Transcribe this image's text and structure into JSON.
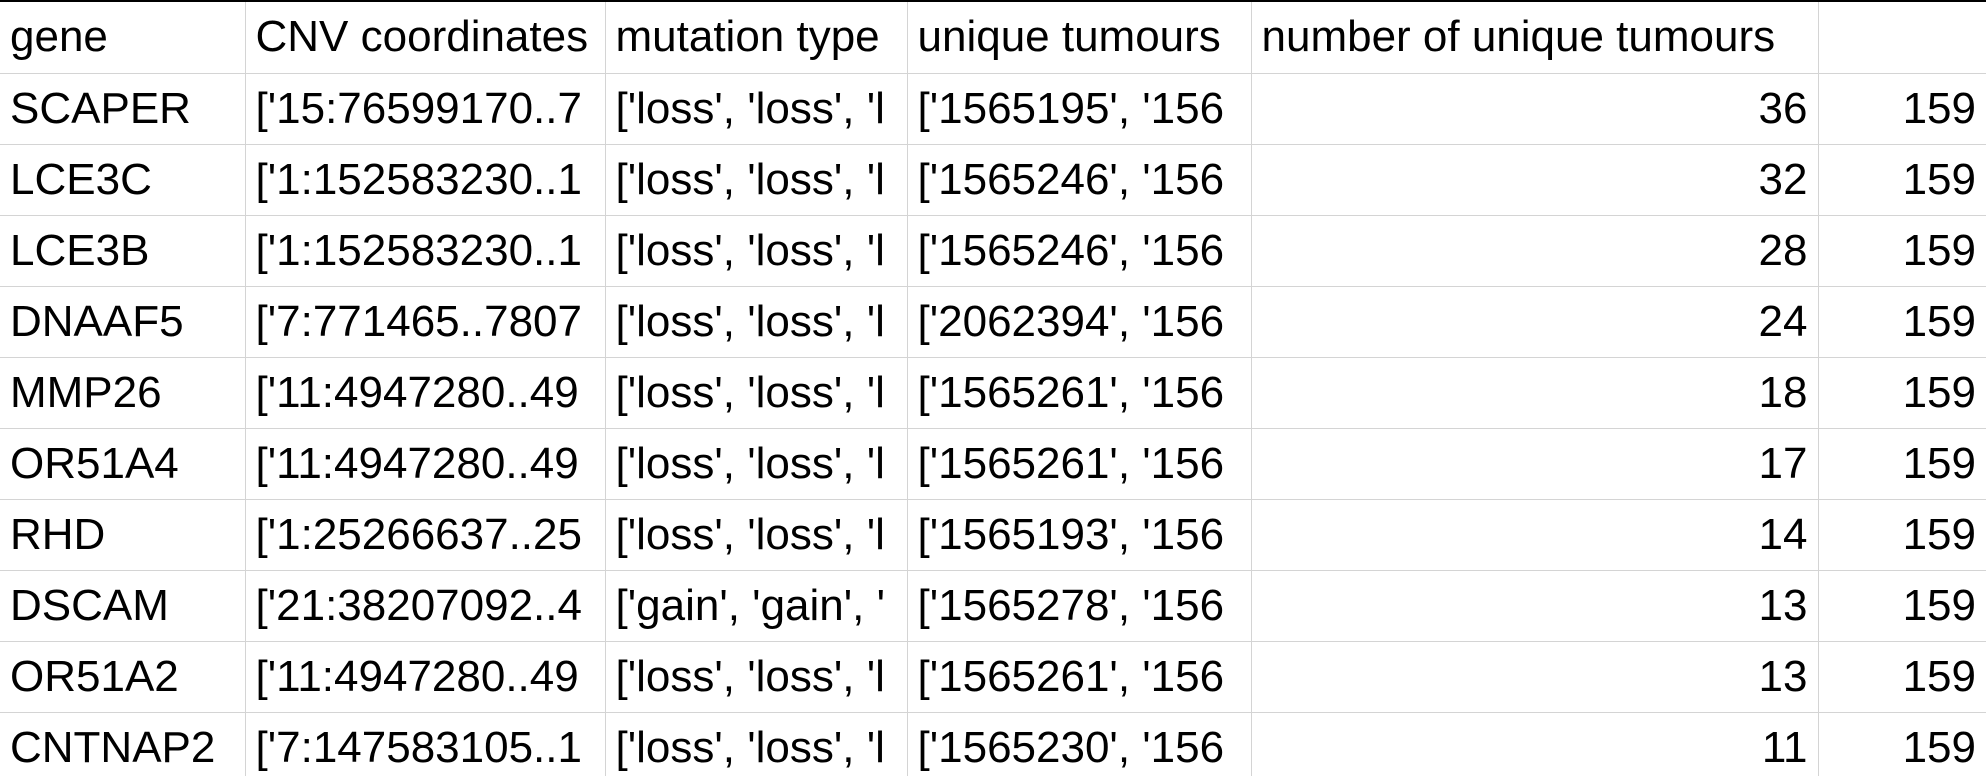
{
  "columns": [
    "gene",
    "CNV coordinates",
    "mutation type",
    "unique tumours",
    "number of unique tumours",
    ""
  ],
  "rows": [
    {
      "gene": "SCAPER",
      "cnv_coordinates": "['15:76599170..7",
      "mutation_type": "['loss', 'loss', 'l",
      "unique_tumours": "['1565195', '156",
      "number_of_unique_tumours": "36",
      "extra": "159"
    },
    {
      "gene": "LCE3C",
      "cnv_coordinates": "['1:152583230..1",
      "mutation_type": "['loss', 'loss', 'l",
      "unique_tumours": "['1565246', '156",
      "number_of_unique_tumours": "32",
      "extra": "159"
    },
    {
      "gene": "LCE3B",
      "cnv_coordinates": "['1:152583230..1",
      "mutation_type": "['loss', 'loss', 'l",
      "unique_tumours": "['1565246', '156",
      "number_of_unique_tumours": "28",
      "extra": "159"
    },
    {
      "gene": "DNAAF5",
      "cnv_coordinates": "['7:771465..7807",
      "mutation_type": "['loss', 'loss', 'l",
      "unique_tumours": "['2062394', '156",
      "number_of_unique_tumours": "24",
      "extra": "159"
    },
    {
      "gene": "MMP26",
      "cnv_coordinates": "['11:4947280..49",
      "mutation_type": "['loss', 'loss', 'l",
      "unique_tumours": "['1565261', '156",
      "number_of_unique_tumours": "18",
      "extra": "159"
    },
    {
      "gene": "OR51A4",
      "cnv_coordinates": "['11:4947280..49",
      "mutation_type": "['loss', 'loss', 'l",
      "unique_tumours": "['1565261', '156",
      "number_of_unique_tumours": "17",
      "extra": "159"
    },
    {
      "gene": "RHD",
      "cnv_coordinates": "['1:25266637..25",
      "mutation_type": "['loss', 'loss', 'l",
      "unique_tumours": "['1565193', '156",
      "number_of_unique_tumours": "14",
      "extra": "159"
    },
    {
      "gene": "DSCAM",
      "cnv_coordinates": "['21:38207092..4",
      "mutation_type": "['gain', 'gain', '",
      "unique_tumours": "['1565278', '156",
      "number_of_unique_tumours": "13",
      "extra": "159"
    },
    {
      "gene": "OR51A2",
      "cnv_coordinates": "['11:4947280..49",
      "mutation_type": "['loss', 'loss', 'l",
      "unique_tumours": "['1565261', '156",
      "number_of_unique_tumours": "13",
      "extra": "159"
    },
    {
      "gene": "CNTNAP2",
      "cnv_coordinates": "['7:147583105..1",
      "mutation_type": "['loss', 'loss', 'l",
      "unique_tumours": "['1565230', '156",
      "number_of_unique_tumours": "11",
      "extra": "159"
    }
  ]
}
